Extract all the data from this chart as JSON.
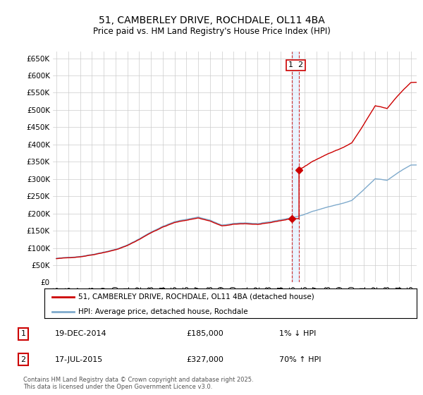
{
  "title": "51, CAMBERLEY DRIVE, ROCHDALE, OL11 4BA",
  "subtitle": "Price paid vs. HM Land Registry's House Price Index (HPI)",
  "ylim": [
    0,
    670000
  ],
  "yticks": [
    0,
    50000,
    100000,
    150000,
    200000,
    250000,
    300000,
    350000,
    400000,
    450000,
    500000,
    550000,
    600000,
    650000
  ],
  "ytick_labels": [
    "£0",
    "£50K",
    "£100K",
    "£150K",
    "£200K",
    "£250K",
    "£300K",
    "£350K",
    "£400K",
    "£450K",
    "£500K",
    "£550K",
    "£600K",
    "£650K"
  ],
  "line1_color": "#cc0000",
  "line2_color": "#7faacc",
  "bg_color": "#ffffff",
  "grid_color": "#cccccc",
  "legend_label1": "51, CAMBERLEY DRIVE, ROCHDALE, OL11 4BA (detached house)",
  "legend_label2": "HPI: Average price, detached house, Rochdale",
  "transaction1_date": "19-DEC-2014",
  "transaction1_price": "£185,000",
  "transaction1_hpi": "1% ↓ HPI",
  "transaction2_date": "17-JUL-2015",
  "transaction2_price": "£327,000",
  "transaction2_hpi": "70% ↑ HPI",
  "footer": "Contains HM Land Registry data © Crown copyright and database right 2025.\nThis data is licensed under the Open Government Licence v3.0.",
  "vline_x1": 2014.96,
  "vline_x2": 2015.54,
  "vline_color": "#cc0000",
  "vband_color": "#ddeeff",
  "marker1_x": 2014.96,
  "marker1_y": 185000,
  "marker2_x": 2015.54,
  "marker2_y": 327000,
  "xmin": 1994.7,
  "xmax": 2025.5
}
